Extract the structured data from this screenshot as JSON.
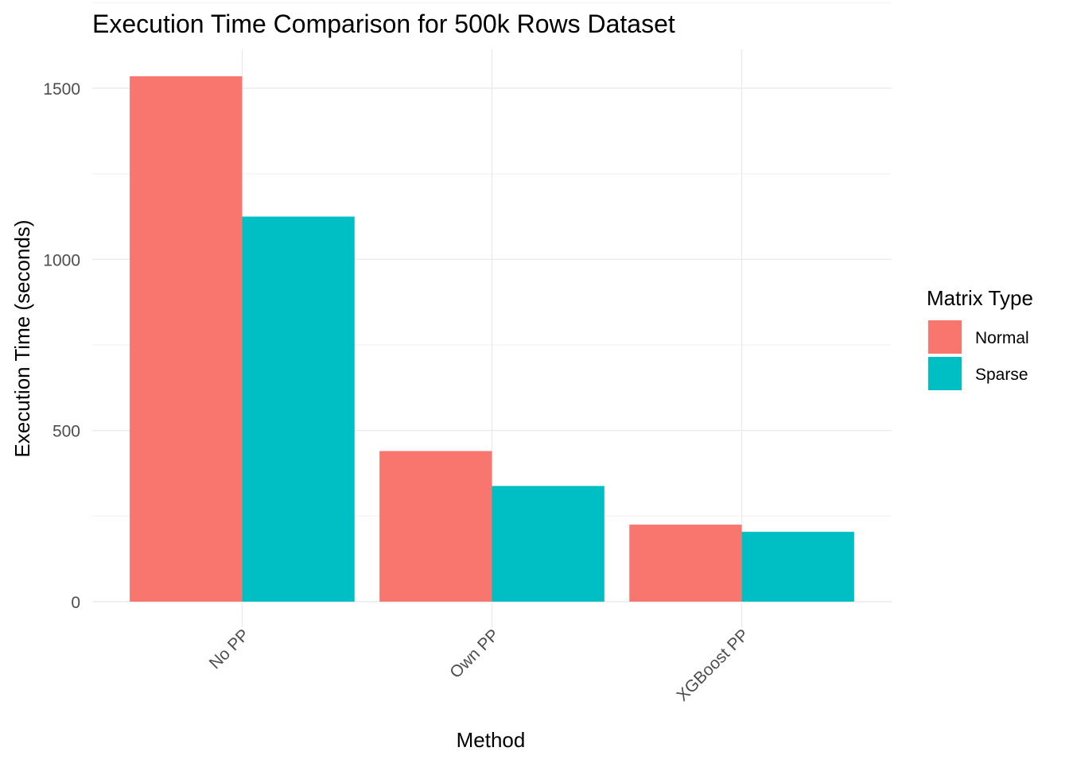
{
  "chart_data": {
    "type": "bar",
    "title": "Execution Time Comparison for 500k Rows Dataset",
    "xlabel": "Method",
    "ylabel": "Execution Time (seconds)",
    "categories": [
      "No PP",
      "Own PP",
      "XGBoost PP"
    ],
    "series": [
      {
        "name": "Normal",
        "color": "#F8766D",
        "values": [
          1535,
          440,
          225
        ]
      },
      {
        "name": "Sparse",
        "color": "#00BFC4",
        "values": [
          1125,
          338,
          204
        ]
      }
    ],
    "ylim": [
      0,
      1500
    ],
    "yticks": [
      0,
      500,
      1000,
      1500
    ],
    "grid": true,
    "legend": {
      "title": "Matrix Type",
      "position": "right"
    }
  }
}
